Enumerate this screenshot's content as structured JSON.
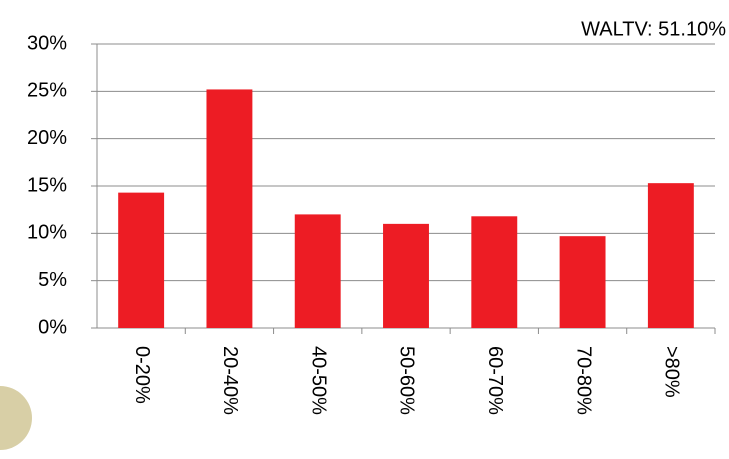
{
  "chart_data": {
    "type": "bar",
    "annotation": "WALTV: 51.10%",
    "categories": [
      "0-20%",
      "20-40%",
      "40-50%",
      "50-60%",
      "60-70%",
      "70-80%",
      ">80%"
    ],
    "values": [
      14.3,
      25.2,
      12.0,
      11.0,
      11.8,
      9.7,
      15.3
    ],
    "color": "#ed1c24",
    "ylim": [
      0,
      30
    ],
    "yticks": [
      {
        "value": 0,
        "label": "0%"
      },
      {
        "value": 5,
        "label": "5%"
      },
      {
        "value": 10,
        "label": "10%"
      },
      {
        "value": 15,
        "label": "15%"
      },
      {
        "value": 20,
        "label": "20%"
      },
      {
        "value": 25,
        "label": "25%"
      },
      {
        "value": 30,
        "label": "30%"
      }
    ],
    "grid": true
  }
}
